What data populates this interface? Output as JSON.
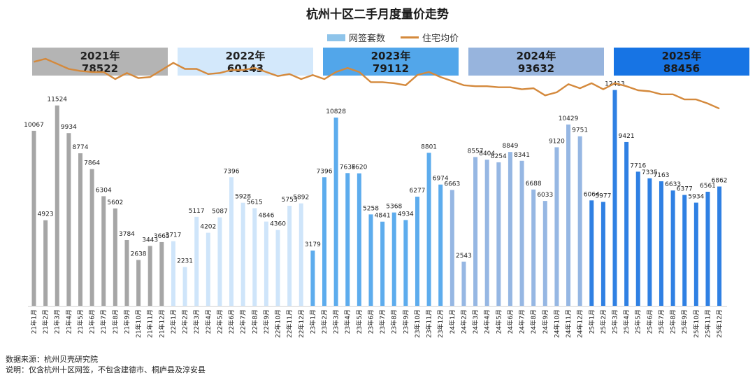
{
  "title": "杭州十区二手月度量价走势",
  "legend": {
    "bar_label": "网签套数",
    "line_label": "住宅均价"
  },
  "year_boxes": [
    {
      "year": "2021年",
      "total": "78522",
      "bg": "#b4b4b4",
      "fg": "#222222"
    },
    {
      "year": "2022年",
      "total": "60143",
      "bg": "#d3e8fb",
      "fg": "#222222"
    },
    {
      "year": "2023年",
      "total": "79112",
      "bg": "#52a6ea",
      "fg": "#1a1a1a"
    },
    {
      "year": "2024年",
      "total": "93632",
      "bg": "#97b4dd",
      "fg": "#1a1a1a"
    },
    {
      "year": "2025年",
      "total": "88456",
      "bg": "#1774e4",
      "fg": "#1a1a1a"
    }
  ],
  "colors": {
    "bar_2021": "#a6a6a6",
    "bar_2022": "#cfe5fa",
    "bar_2023": "#5daced",
    "bar_2024": "#96b7e3",
    "bar_2025": "#2f80e3",
    "line": "#d4893c"
  },
  "chart_data": {
    "type": "bar",
    "categories": [
      "21年1月",
      "21年2月",
      "21年3月",
      "21年4月",
      "21年5月",
      "21年6月",
      "21年7月",
      "21年8月",
      "21年9月",
      "21年10月",
      "21年11月",
      "21年12月",
      "22年1月",
      "22年2月",
      "22年3月",
      "22年4月",
      "22年5月",
      "22年6月",
      "22年7月",
      "22年8月",
      "22年9月",
      "22年10月",
      "22年11月",
      "22年12月",
      "23年1月",
      "23年2月",
      "23年3月",
      "23年4月",
      "23年5月",
      "23年6月",
      "23年7月",
      "23年8月",
      "23年9月",
      "23年10月",
      "23年11月",
      "23年12月",
      "24年1月",
      "24年2月",
      "24年3月",
      "24年4月",
      "24年5月",
      "24年6月",
      "24年7月",
      "24年8月",
      "24年9月",
      "24年10月",
      "24年11月",
      "24年12月",
      "25年1月",
      "25年2月",
      "25年3月",
      "25年4月",
      "25年5月",
      "25年6月",
      "25年7月",
      "25年8月",
      "25年9月",
      "25年10月",
      "25年11月",
      "25年12月"
    ],
    "series": [
      {
        "name": "网签套数",
        "values": [
          10067,
          4923,
          11524,
          9934,
          8774,
          7864,
          6304,
          5602,
          3784,
          2638,
          3443,
          3665,
          3717,
          2231,
          5117,
          4202,
          5087,
          7396,
          5928,
          5615,
          4846,
          4360,
          5753,
          5892,
          3179,
          7396,
          10828,
          7636,
          7620,
          5258,
          4841,
          5368,
          4934,
          6277,
          8801,
          6974,
          6663,
          2543,
          8557,
          8404,
          8254,
          8849,
          8341,
          6688,
          6033,
          9120,
          10429,
          9751,
          6064,
          5977,
          12413,
          9421,
          7716,
          7335,
          7163,
          6633,
          6377,
          5934,
          6561,
          6862
        ]
      },
      {
        "name": "住宅均价",
        "values": [
          12000,
          12150,
          11900,
          11650,
          11550,
          11500,
          11500,
          11150,
          11450,
          11200,
          11250,
          11600,
          11950,
          11650,
          11650,
          11400,
          11450,
          11600,
          11600,
          11700,
          11500,
          11300,
          11400,
          11150,
          11350,
          11150,
          11500,
          11700,
          11500,
          11000,
          11000,
          10950,
          10850,
          11350,
          11500,
          11250,
          11050,
          10850,
          10800,
          10800,
          10750,
          10750,
          10650,
          10700,
          10350,
          10500,
          10900,
          10700,
          10950,
          10650,
          10950,
          10800,
          10600,
          10550,
          10400,
          10400,
          10150,
          10150,
          9950,
          9700
        ]
      }
    ],
    "ylim": [
      0,
      12800
    ],
    "line_ylim": [
      0,
      13900
    ],
    "xlabel": "",
    "ylabel": ""
  },
  "footer": {
    "source": "数据来源：杭州贝壳研究院",
    "note": "说明：仅含杭州十区网签，不包含建德市、桐庐县及淳安县"
  }
}
